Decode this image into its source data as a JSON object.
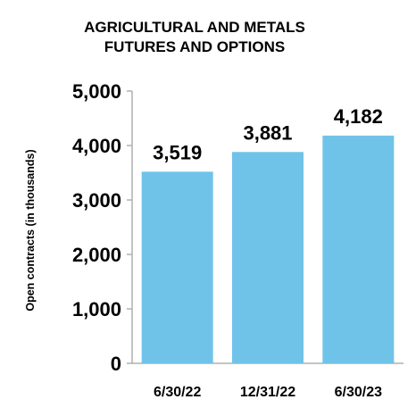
{
  "chart_data": {
    "type": "bar",
    "title_lines": [
      "AGRICULTURAL AND METALS",
      "FUTURES AND OPTIONS"
    ],
    "categories": [
      "6/30/22",
      "12/31/22",
      "6/30/23"
    ],
    "values": [
      3519,
      3881,
      4182
    ],
    "value_labels": [
      "3,519",
      "3,881",
      "4,182"
    ],
    "xlabel": "",
    "ylabel": "Open contracts (in thousands)",
    "ylim": [
      0,
      5000
    ],
    "yticks": [
      0,
      1000,
      2000,
      3000,
      4000,
      5000
    ],
    "ytick_labels": [
      "0",
      "1,000",
      "2,000",
      "3,000",
      "4,000",
      "5,000"
    ],
    "grid": false,
    "legend": "none",
    "bar_color": "#70C3E8",
    "axis_color": "#B0B0B0"
  }
}
